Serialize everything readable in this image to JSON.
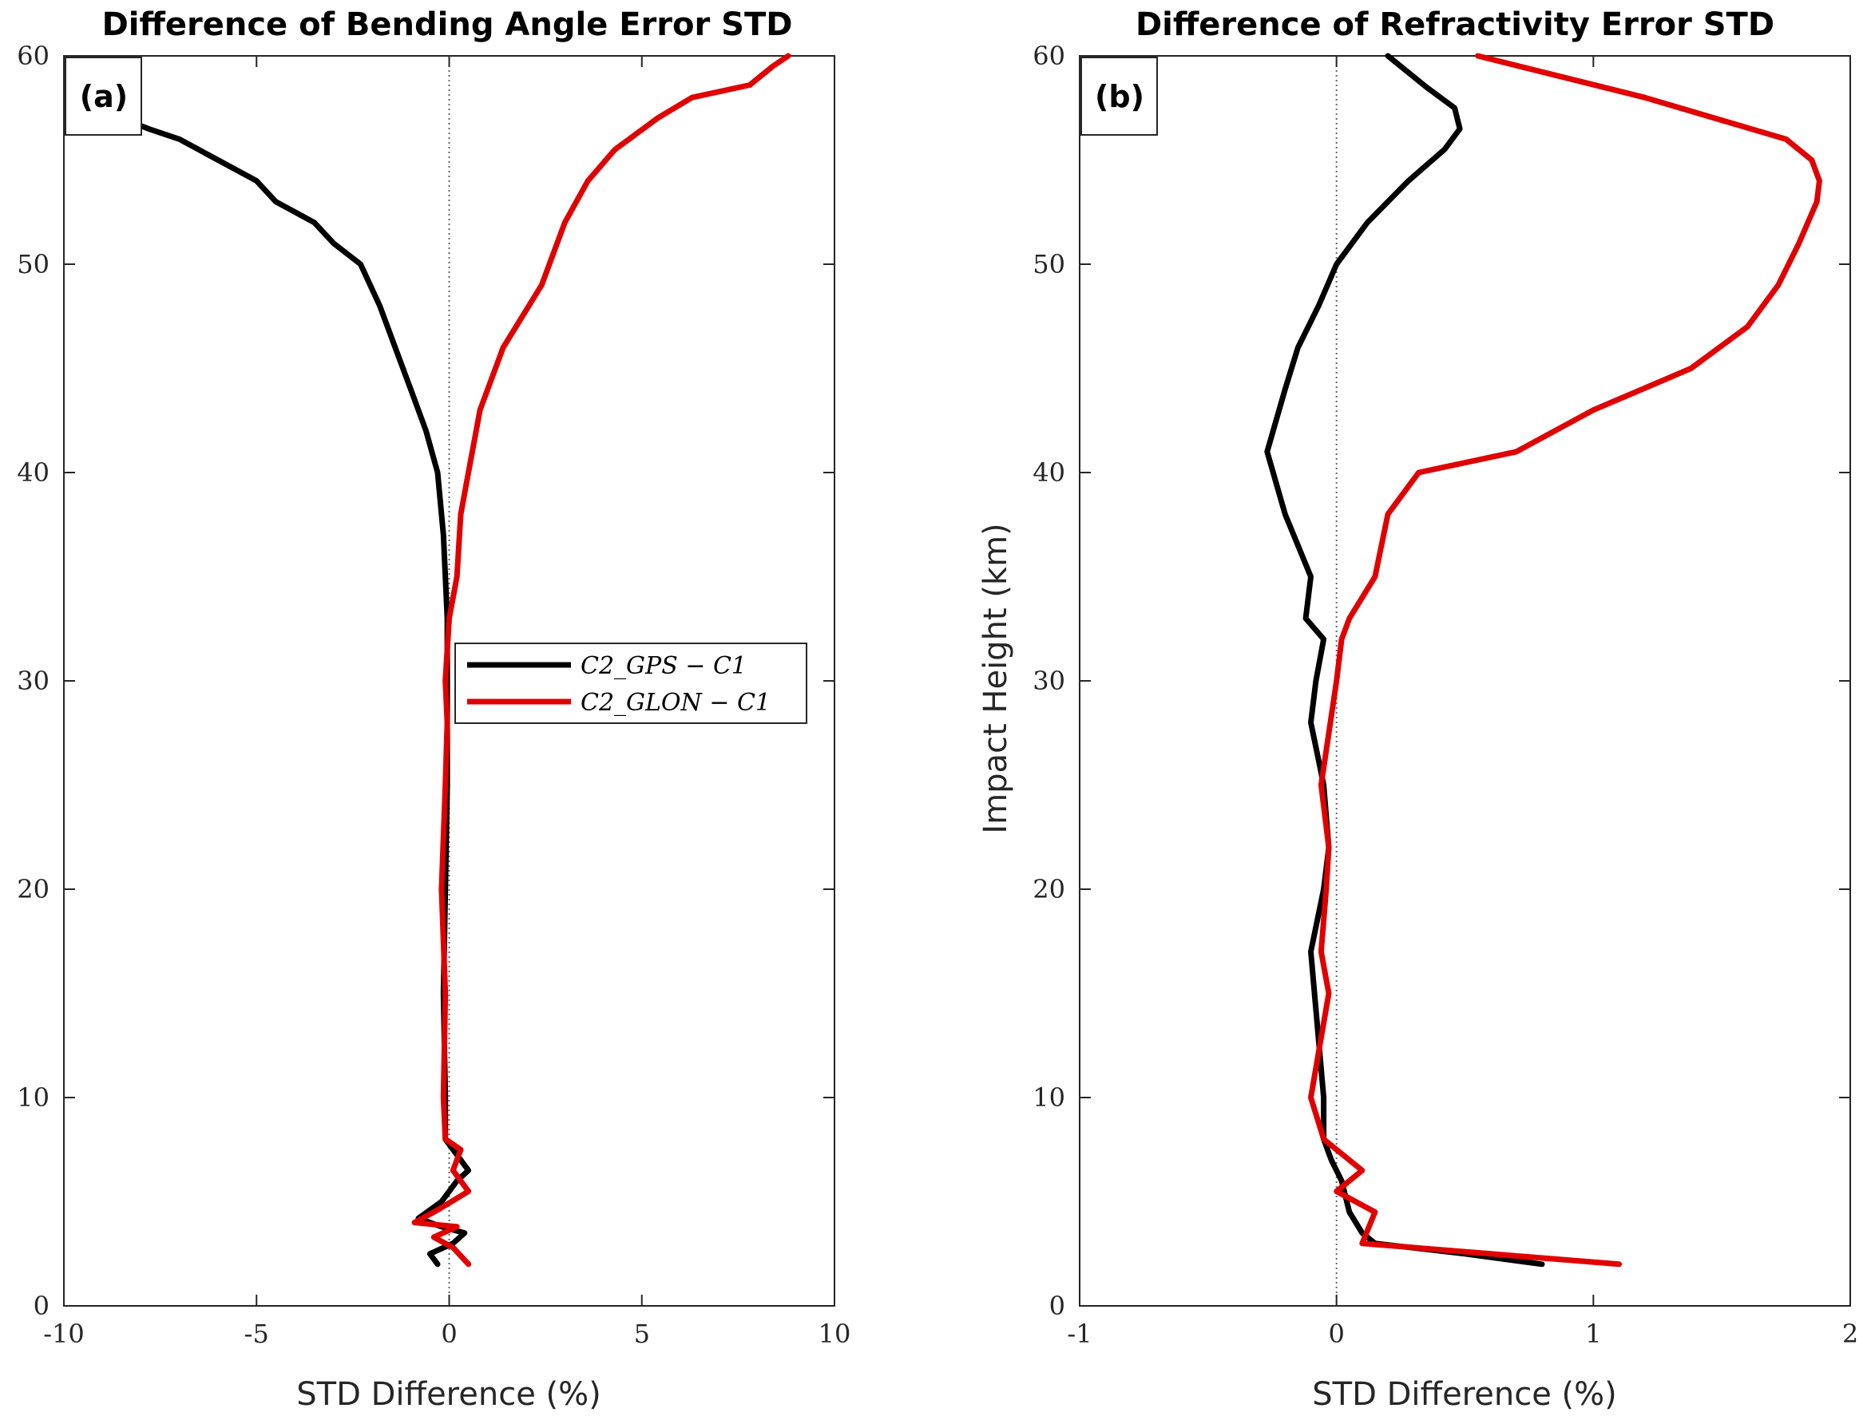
{
  "chart_data": [
    {
      "type": "line",
      "panel_label": "(a)",
      "title": "Difference of Bending Angle Error STD",
      "xlabel": "STD Difference (%)",
      "ylabel": "",
      "xlim": [
        -10,
        10
      ],
      "ylim": [
        0,
        60
      ],
      "xticks": [
        -10,
        -5,
        0,
        5,
        10
      ],
      "xtick_labels": [
        "-10",
        "-5",
        "0",
        "5",
        "10"
      ],
      "yticks": [
        0,
        10,
        20,
        30,
        40,
        50,
        60
      ],
      "ytick_labels": [
        "0",
        "10",
        "20",
        "30",
        "40",
        "50",
        "60"
      ],
      "zero_line": true,
      "legend": {
        "location": "center-right",
        "entries": [
          "C2_GPS − C1",
          "C2_GLON − C1"
        ]
      },
      "series": [
        {
          "name": "C2_GPS − C1",
          "color": "#000000",
          "x": [
            -0.3,
            -0.5,
            0.1,
            0.4,
            -0.2,
            -0.8,
            -0.2,
            0.2,
            0.5,
            0.3,
            -0.1,
            -0.1,
            -0.15,
            -0.1,
            -0.05,
            -0.05,
            -0.05,
            -0.1,
            -0.15,
            -0.3,
            -0.6,
            -1.0,
            -1.4,
            -1.8,
            -2.3,
            -3.0,
            -3.5,
            -4.5,
            -5.0,
            -6.0,
            -7.0,
            -7.8,
            -8.5
          ],
          "y": [
            2,
            2.5,
            3,
            3.5,
            3.8,
            4.2,
            5,
            6,
            6.5,
            7,
            8,
            10,
            15,
            20,
            25,
            30,
            33,
            35,
            37,
            40,
            42,
            44,
            46,
            48,
            50,
            51,
            52,
            53,
            54,
            55,
            56,
            56.5,
            57
          ]
        },
        {
          "name": "C2_GLON − C1",
          "color": "#e00000",
          "x": [
            0.5,
            0.1,
            -0.4,
            0.2,
            -0.9,
            -0.3,
            0.5,
            0.1,
            0.3,
            -0.1,
            -0.15,
            -0.1,
            -0.2,
            -0.1,
            -0.05,
            -0.1,
            0.0,
            0.2,
            0.3,
            0.5,
            0.8,
            1.4,
            2.4,
            3.0,
            3.6,
            4.3,
            5.4,
            6.3,
            7.8,
            8.4,
            8.8
          ],
          "y": [
            2,
            2.8,
            3.3,
            3.8,
            4.0,
            4.6,
            5.5,
            6.5,
            7.5,
            8,
            10,
            15,
            20,
            25,
            28,
            30,
            33,
            35,
            38,
            40,
            43,
            46,
            49,
            52,
            54,
            55.5,
            57,
            58,
            58.6,
            59.5,
            60
          ]
        }
      ]
    },
    {
      "type": "line",
      "panel_label": "(b)",
      "title": "Difference of Refractivity Error STD",
      "xlabel": "STD Difference (%)",
      "ylabel": "Impact Height (km)",
      "xlim": [
        -1,
        2
      ],
      "ylim": [
        0,
        60
      ],
      "xticks": [
        -1,
        0,
        1,
        2
      ],
      "xtick_labels": [
        "-1",
        "0",
        "1",
        "2"
      ],
      "yticks": [
        0,
        10,
        20,
        30,
        40,
        50,
        60
      ],
      "ytick_labels": [
        "0",
        "10",
        "20",
        "30",
        "40",
        "50",
        "60"
      ],
      "zero_line": true,
      "series": [
        {
          "name": "C2_GPS − C1",
          "color": "#000000",
          "x": [
            0.8,
            0.5,
            0.15,
            0.1,
            0.05,
            0.02,
            -0.02,
            -0.05,
            -0.05,
            -0.1,
            -0.05,
            -0.03,
            -0.05,
            -0.1,
            -0.08,
            -0.05,
            -0.12,
            -0.1,
            -0.2,
            -0.27,
            -0.2,
            -0.15,
            -0.07,
            0.0,
            0.12,
            0.28,
            0.42,
            0.48,
            0.46,
            0.35,
            0.2
          ],
          "y": [
            2,
            2.5,
            3,
            3.5,
            4.5,
            6,
            7,
            8,
            10,
            17,
            20,
            22,
            25,
            28,
            30,
            32,
            33,
            35,
            38,
            41,
            44,
            46,
            48,
            50,
            52,
            54,
            55.5,
            56.5,
            57.5,
            58.5,
            60
          ]
        },
        {
          "name": "C2_GLON − C1",
          "color": "#e00000",
          "x": [
            1.1,
            0.6,
            0.1,
            0.15,
            0.0,
            0.1,
            -0.05,
            -0.1,
            -0.03,
            -0.06,
            -0.04,
            -0.03,
            -0.06,
            0.0,
            0.02,
            0.05,
            0.15,
            0.2,
            0.32,
            0.7,
            1.0,
            1.38,
            1.6,
            1.72,
            1.8,
            1.87,
            1.88,
            1.85,
            1.75,
            1.2,
            0.55
          ],
          "y": [
            2,
            2.5,
            3,
            4.5,
            5.5,
            6.5,
            8,
            10,
            15,
            17,
            20,
            22,
            25,
            30,
            32,
            33,
            35,
            38,
            40,
            41,
            43,
            45,
            47,
            49,
            51,
            53,
            54,
            55,
            56,
            58,
            60
          ]
        }
      ]
    }
  ]
}
